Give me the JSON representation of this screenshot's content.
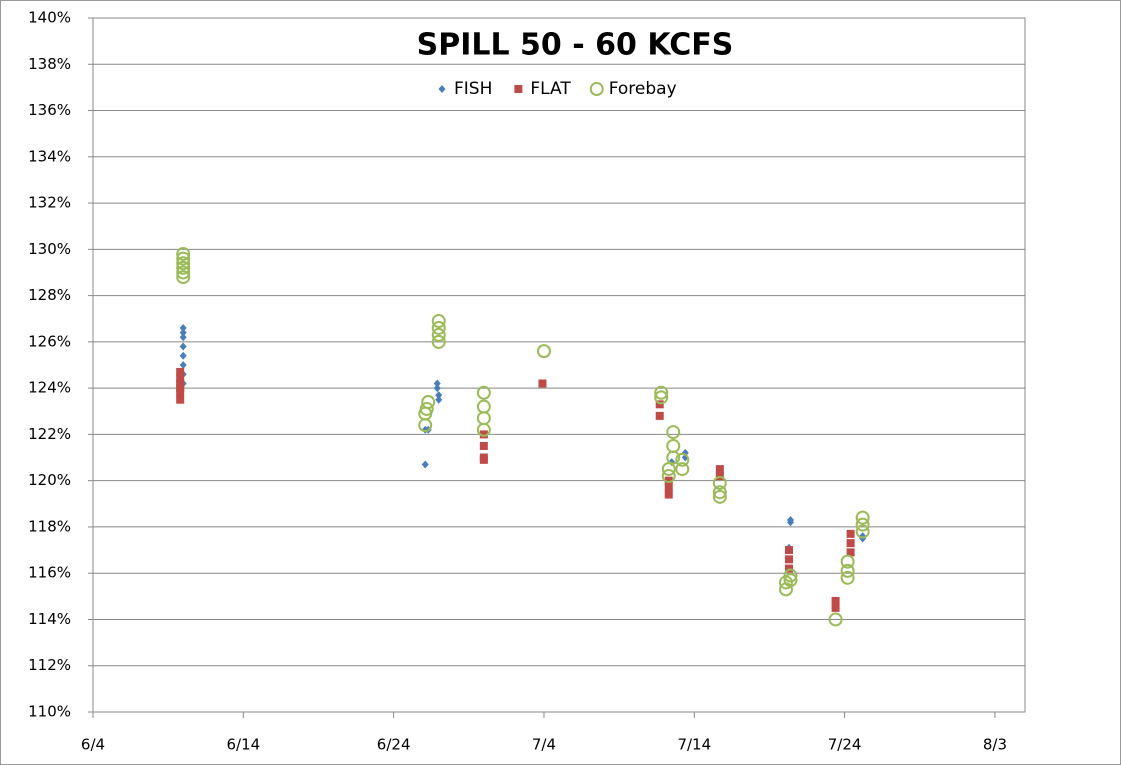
{
  "chart_data": {
    "type": "scatter",
    "title": "SPILL  50 - 60 KCFS",
    "legend": "top",
    "grid": true,
    "xlim": [
      0,
      62
    ],
    "xticks": [
      {
        "value": 0,
        "label": "6/4"
      },
      {
        "value": 10,
        "label": "6/14"
      },
      {
        "value": 20,
        "label": "6/24"
      },
      {
        "value": 30,
        "label": "7/4"
      },
      {
        "value": 40,
        "label": "7/14"
      },
      {
        "value": 50,
        "label": "7/24"
      },
      {
        "value": 60,
        "label": "8/3"
      }
    ],
    "ylim": [
      110,
      140
    ],
    "yticks": [
      {
        "value": 110,
        "label": "110%"
      },
      {
        "value": 112,
        "label": "112%"
      },
      {
        "value": 114,
        "label": "114%"
      },
      {
        "value": 116,
        "label": "116%"
      },
      {
        "value": 118,
        "label": "118%"
      },
      {
        "value": 120,
        "label": "120%"
      },
      {
        "value": 122,
        "label": "122%"
      },
      {
        "value": 124,
        "label": "124%"
      },
      {
        "value": 126,
        "label": "126%"
      },
      {
        "value": 128,
        "label": "128%"
      },
      {
        "value": 130,
        "label": "130%"
      },
      {
        "value": 132,
        "label": "132%"
      },
      {
        "value": 134,
        "label": "134%"
      },
      {
        "value": 136,
        "label": "136%"
      },
      {
        "value": 138,
        "label": "138%"
      },
      {
        "value": 140,
        "label": "140%"
      }
    ],
    "series": [
      {
        "name": "FISH",
        "color": "#4a7ebb",
        "marker": "diamond",
        "x": [
          6.0,
          6.0,
          6.0,
          6.0,
          6.0,
          6.0,
          6.0,
          6.0,
          22.1,
          22.1,
          22.3,
          22.9,
          22.9,
          23.0,
          23.0,
          38.5,
          39.4,
          39.4,
          46.4,
          46.4,
          46.3,
          51.2,
          51.2
        ],
        "values": [
          126.6,
          126.4,
          126.2,
          125.8,
          125.4,
          125.0,
          124.6,
          124.2,
          120.7,
          122.2,
          122.2,
          124.2,
          124.0,
          123.7,
          123.5,
          120.8,
          121.2,
          121.0,
          118.2,
          118.3,
          117.1,
          117.6,
          117.5
        ]
      },
      {
        "name": "FLAT",
        "color": "#be4b48",
        "marker": "square",
        "x": [
          5.8,
          5.8,
          5.8,
          5.8,
          5.8,
          5.8,
          26.0,
          26.0,
          26.0,
          26.0,
          29.9,
          37.7,
          37.7,
          38.3,
          38.3,
          38.3,
          41.7,
          41.7,
          46.3,
          46.3,
          46.3,
          49.4,
          49.4,
          50.4,
          50.4,
          50.4
        ],
        "values": [
          124.7,
          124.4,
          124.2,
          124.0,
          123.8,
          123.5,
          122.0,
          121.5,
          121.0,
          120.9,
          124.2,
          123.3,
          122.8,
          120.0,
          119.7,
          119.4,
          120.5,
          120.2,
          117.0,
          116.6,
          116.2,
          114.8,
          114.5,
          117.7,
          117.3,
          116.9
        ]
      },
      {
        "name": "Forebay",
        "color": "#9bbb59",
        "marker": "circle",
        "x": [
          6.0,
          6.0,
          6.0,
          6.0,
          6.0,
          6.0,
          22.1,
          22.1,
          22.2,
          22.3,
          23.0,
          23.0,
          23.0,
          23.0,
          26.0,
          26.0,
          26.0,
          26.0,
          30.0,
          37.8,
          37.8,
          38.3,
          38.3,
          38.6,
          38.6,
          38.6,
          39.2,
          39.2,
          41.7,
          41.7,
          41.7,
          46.1,
          46.1,
          46.4,
          46.4,
          49.4,
          50.2,
          50.2,
          50.2,
          51.2,
          51.2,
          51.2
        ],
        "values": [
          129.8,
          129.6,
          129.4,
          129.2,
          129.0,
          128.8,
          122.4,
          122.9,
          123.1,
          123.4,
          126.9,
          126.6,
          126.3,
          126.0,
          123.8,
          123.2,
          122.7,
          122.2,
          125.6,
          123.8,
          123.6,
          120.5,
          120.2,
          122.1,
          121.5,
          121.0,
          120.9,
          120.5,
          119.9,
          119.5,
          119.3,
          115.3,
          115.6,
          115.9,
          115.7,
          114.0,
          116.5,
          116.1,
          115.8,
          118.4,
          118.1,
          117.8
        ]
      }
    ]
  }
}
